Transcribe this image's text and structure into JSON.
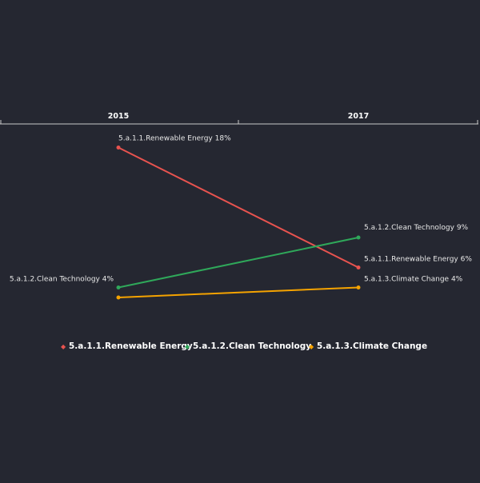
{
  "chart_data": {
    "type": "line",
    "x": [
      "2015",
      "2017"
    ],
    "ylim": [
      0,
      20
    ],
    "grid": false,
    "legend_position": "bottom-center",
    "series": [
      {
        "name": "5.a.1.1.Renewable Energy",
        "color": "#e8534f",
        "values": [
          18,
          6
        ],
        "labels": [
          "5.a.1.1.Renewable Energy 18%",
          "5.a.1.1.Renewable Energy 6%"
        ]
      },
      {
        "name": "5.a.1.2.Clean Technology",
        "color": "#2fa85a",
        "values": [
          4,
          9
        ],
        "labels": [
          "5.a.1.2.Clean Technology 4%",
          "5.a.1.2.Clean Technology 9%"
        ]
      },
      {
        "name": "5.a.1.3.Climate Change",
        "color": "#f5a300",
        "values": [
          3,
          4
        ],
        "labels": [
          "",
          "5.a.1.3.Climate Change 4%"
        ]
      }
    ]
  },
  "legend_marker": "◆"
}
